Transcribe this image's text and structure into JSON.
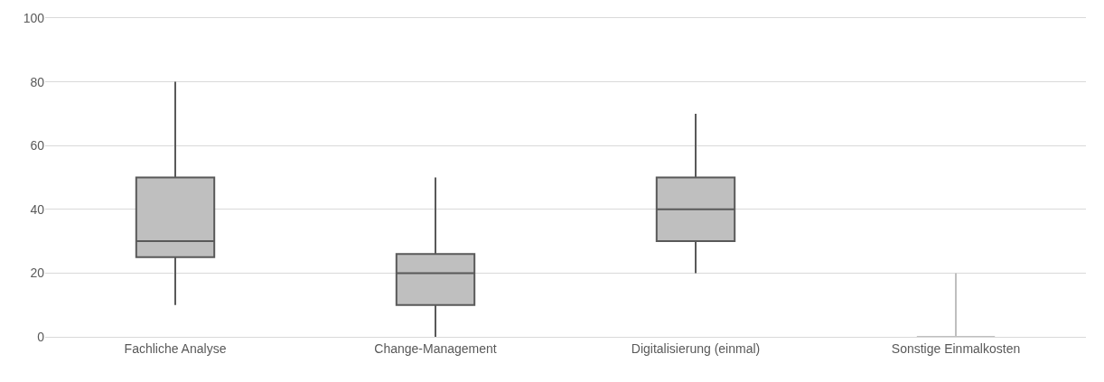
{
  "chart_data": {
    "type": "box",
    "categories": [
      "Fachliche Analyse",
      "Change-Management",
      "Digitalisierung (einmal)",
      "Sonstige Einmalkosten"
    ],
    "boxes": [
      {
        "low": 10,
        "q1": 25,
        "median": 30,
        "q3": 50,
        "high": 80
      },
      {
        "low": 0,
        "q1": 10,
        "median": 20,
        "q3": 26,
        "high": 50
      },
      {
        "low": 20,
        "q1": 30,
        "median": 40,
        "q3": 50,
        "high": 70
      },
      {
        "low": 0,
        "q1": 0,
        "median": 0,
        "q3": 0,
        "high": 20
      }
    ],
    "color": "#bfbfbf",
    "ylim": [
      0,
      100
    ],
    "yticks": [
      0,
      20,
      40,
      60,
      80,
      100
    ],
    "grid": "y"
  }
}
